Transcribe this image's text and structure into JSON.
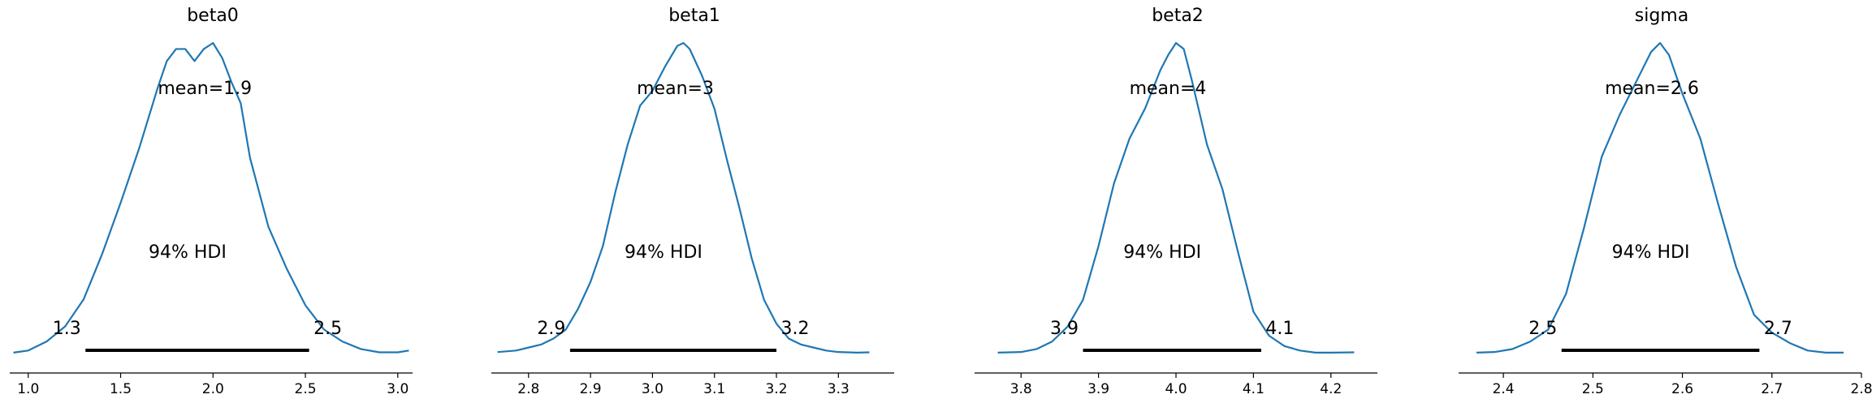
{
  "colors": {
    "density": "#1f77b4",
    "hdi": "#000000",
    "axis": "#000000"
  },
  "hdi_text": "94% HDI",
  "chart_data": [
    {
      "type": "line",
      "title": "beta0",
      "mean_label": "mean=1.9",
      "hdi_low_label": "1.3",
      "hdi_high_label": "2.5",
      "hdi": [
        1.31,
        2.52
      ],
      "xlim": [
        0.9,
        3.08
      ],
      "xticks": [
        1.0,
        1.5,
        2.0,
        2.5,
        3.0
      ],
      "xtick_labels": [
        "1.0",
        "1.5",
        "2.0",
        "2.5",
        "3.0"
      ],
      "series": [
        {
          "x": [
            0.92,
            1.0,
            1.1,
            1.2,
            1.3,
            1.4,
            1.5,
            1.6,
            1.7,
            1.75,
            1.8,
            1.85,
            1.9,
            1.95,
            2.0,
            2.05,
            2.1,
            2.15,
            2.2,
            2.3,
            2.4,
            2.5,
            2.6,
            2.7,
            2.8,
            2.9,
            3.0,
            3.06
          ],
          "y": [
            0.003,
            0.01,
            0.04,
            0.09,
            0.18,
            0.33,
            0.5,
            0.68,
            0.88,
            0.97,
            1.01,
            1.01,
            0.97,
            1.01,
            1.03,
            0.98,
            0.9,
            0.83,
            0.65,
            0.42,
            0.28,
            0.16,
            0.08,
            0.04,
            0.015,
            0.004,
            0.004,
            0.01
          ]
        }
      ]
    },
    {
      "type": "line",
      "title": "beta1",
      "mean_label": "mean=3",
      "hdi_low_label": "2.9",
      "hdi_high_label": "3.2",
      "hdi": [
        2.867,
        3.2
      ],
      "xlim": [
        2.74,
        3.39
      ],
      "xticks": [
        2.8,
        2.9,
        3.0,
        3.1,
        3.2,
        3.3
      ],
      "xtick_labels": [
        "2.8",
        "2.9",
        "3.0",
        "3.1",
        "3.2",
        "3.3"
      ],
      "series": [
        {
          "x": [
            2.75,
            2.78,
            2.8,
            2.82,
            2.84,
            2.86,
            2.88,
            2.9,
            2.92,
            2.94,
            2.96,
            2.98,
            3.0,
            3.02,
            3.04,
            3.05,
            3.06,
            3.08,
            3.1,
            3.12,
            3.14,
            3.16,
            3.18,
            3.2,
            3.22,
            3.24,
            3.26,
            3.28,
            3.3,
            3.33,
            3.35
          ],
          "y": [
            0.005,
            0.01,
            0.02,
            0.03,
            0.05,
            0.08,
            0.15,
            0.24,
            0.36,
            0.54,
            0.7,
            0.83,
            0.88,
            0.96,
            1.03,
            1.04,
            1.02,
            0.93,
            0.82,
            0.65,
            0.49,
            0.32,
            0.18,
            0.1,
            0.05,
            0.03,
            0.02,
            0.01,
            0.005,
            0.003,
            0.004
          ]
        }
      ]
    },
    {
      "type": "line",
      "title": "beta2",
      "mean_label": "mean=4",
      "hdi_low_label": "3.9",
      "hdi_high_label": "4.1",
      "hdi": [
        3.88,
        4.11
      ],
      "xlim": [
        3.74,
        4.26
      ],
      "xticks": [
        3.8,
        3.9,
        4.0,
        4.1,
        4.2
      ],
      "xtick_labels": [
        "3.8",
        "3.9",
        "4.0",
        "4.1",
        "4.2"
      ],
      "series": [
        {
          "x": [
            3.77,
            3.8,
            3.82,
            3.84,
            3.86,
            3.88,
            3.9,
            3.92,
            3.94,
            3.96,
            3.98,
            3.99,
            4.0,
            4.01,
            4.02,
            4.04,
            4.06,
            4.08,
            4.1,
            4.12,
            4.14,
            4.16,
            4.18,
            4.2,
            4.23
          ],
          "y": [
            0.003,
            0.005,
            0.015,
            0.04,
            0.09,
            0.18,
            0.36,
            0.57,
            0.72,
            0.82,
            0.95,
            1.0,
            1.04,
            1.02,
            0.92,
            0.7,
            0.55,
            0.34,
            0.14,
            0.06,
            0.025,
            0.01,
            0.003,
            0.003,
            0.004
          ]
        }
      ]
    },
    {
      "type": "line",
      "title": "sigma",
      "mean_label": "mean=2.6",
      "hdi_low_label": "2.5",
      "hdi_high_label": "2.7",
      "hdi": [
        2.465,
        2.686
      ],
      "xlim": [
        2.35,
        2.8
      ],
      "xticks": [
        2.4,
        2.5,
        2.6,
        2.7,
        2.8
      ],
      "xtick_labels": [
        "2.4",
        "2.5",
        "2.6",
        "2.7",
        "2.8"
      ],
      "series": [
        {
          "x": [
            2.37,
            2.39,
            2.41,
            2.43,
            2.45,
            2.47,
            2.49,
            2.51,
            2.53,
            2.55,
            2.565,
            2.575,
            2.585,
            2.6,
            2.62,
            2.64,
            2.66,
            2.68,
            2.7,
            2.72,
            2.74,
            2.76,
            2.78
          ],
          "y": [
            0.003,
            0.005,
            0.015,
            0.04,
            0.08,
            0.2,
            0.42,
            0.66,
            0.8,
            0.92,
            1.01,
            1.04,
            1.0,
            0.87,
            0.72,
            0.5,
            0.29,
            0.13,
            0.07,
            0.035,
            0.01,
            0.003,
            0.003
          ]
        }
      ]
    }
  ]
}
